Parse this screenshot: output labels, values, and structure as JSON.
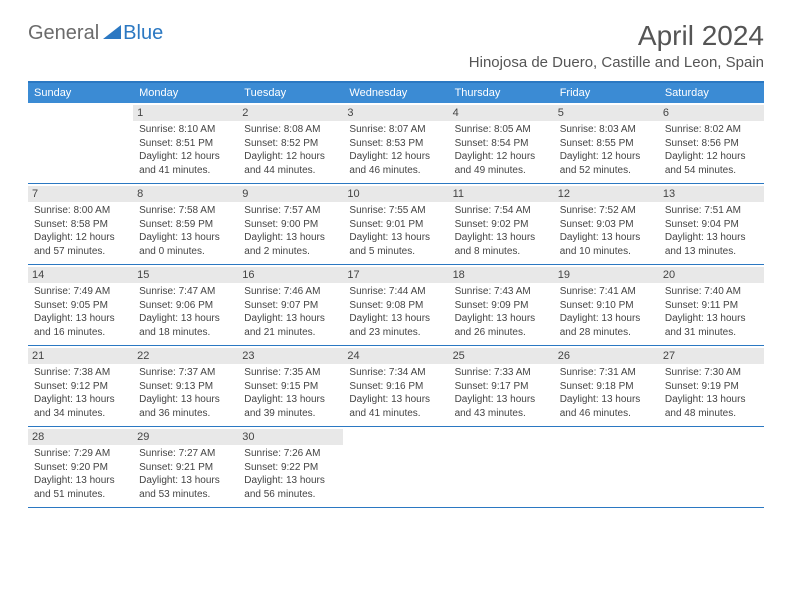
{
  "brand": {
    "part1": "General",
    "part2": "Blue"
  },
  "title": "April 2024",
  "location": "Hinojosa de Duero, Castille and Leon, Spain",
  "colors": {
    "header_bg": "#3b8bd4",
    "border": "#2b78c2",
    "daynum_bg": "#e8e8e8",
    "text": "#444444",
    "title_color": "#555555"
  },
  "day_names": [
    "Sunday",
    "Monday",
    "Tuesday",
    "Wednesday",
    "Thursday",
    "Friday",
    "Saturday"
  ],
  "weeks": [
    [
      null,
      {
        "n": "1",
        "sr": "8:10 AM",
        "ss": "8:51 PM",
        "dl": "12 hours and 41 minutes."
      },
      {
        "n": "2",
        "sr": "8:08 AM",
        "ss": "8:52 PM",
        "dl": "12 hours and 44 minutes."
      },
      {
        "n": "3",
        "sr": "8:07 AM",
        "ss": "8:53 PM",
        "dl": "12 hours and 46 minutes."
      },
      {
        "n": "4",
        "sr": "8:05 AM",
        "ss": "8:54 PM",
        "dl": "12 hours and 49 minutes."
      },
      {
        "n": "5",
        "sr": "8:03 AM",
        "ss": "8:55 PM",
        "dl": "12 hours and 52 minutes."
      },
      {
        "n": "6",
        "sr": "8:02 AM",
        "ss": "8:56 PM",
        "dl": "12 hours and 54 minutes."
      }
    ],
    [
      {
        "n": "7",
        "sr": "8:00 AM",
        "ss": "8:58 PM",
        "dl": "12 hours and 57 minutes."
      },
      {
        "n": "8",
        "sr": "7:58 AM",
        "ss": "8:59 PM",
        "dl": "13 hours and 0 minutes."
      },
      {
        "n": "9",
        "sr": "7:57 AM",
        "ss": "9:00 PM",
        "dl": "13 hours and 2 minutes."
      },
      {
        "n": "10",
        "sr": "7:55 AM",
        "ss": "9:01 PM",
        "dl": "13 hours and 5 minutes."
      },
      {
        "n": "11",
        "sr": "7:54 AM",
        "ss": "9:02 PM",
        "dl": "13 hours and 8 minutes."
      },
      {
        "n": "12",
        "sr": "7:52 AM",
        "ss": "9:03 PM",
        "dl": "13 hours and 10 minutes."
      },
      {
        "n": "13",
        "sr": "7:51 AM",
        "ss": "9:04 PM",
        "dl": "13 hours and 13 minutes."
      }
    ],
    [
      {
        "n": "14",
        "sr": "7:49 AM",
        "ss": "9:05 PM",
        "dl": "13 hours and 16 minutes."
      },
      {
        "n": "15",
        "sr": "7:47 AM",
        "ss": "9:06 PM",
        "dl": "13 hours and 18 minutes."
      },
      {
        "n": "16",
        "sr": "7:46 AM",
        "ss": "9:07 PM",
        "dl": "13 hours and 21 minutes."
      },
      {
        "n": "17",
        "sr": "7:44 AM",
        "ss": "9:08 PM",
        "dl": "13 hours and 23 minutes."
      },
      {
        "n": "18",
        "sr": "7:43 AM",
        "ss": "9:09 PM",
        "dl": "13 hours and 26 minutes."
      },
      {
        "n": "19",
        "sr": "7:41 AM",
        "ss": "9:10 PM",
        "dl": "13 hours and 28 minutes."
      },
      {
        "n": "20",
        "sr": "7:40 AM",
        "ss": "9:11 PM",
        "dl": "13 hours and 31 minutes."
      }
    ],
    [
      {
        "n": "21",
        "sr": "7:38 AM",
        "ss": "9:12 PM",
        "dl": "13 hours and 34 minutes."
      },
      {
        "n": "22",
        "sr": "7:37 AM",
        "ss": "9:13 PM",
        "dl": "13 hours and 36 minutes."
      },
      {
        "n": "23",
        "sr": "7:35 AM",
        "ss": "9:15 PM",
        "dl": "13 hours and 39 minutes."
      },
      {
        "n": "24",
        "sr": "7:34 AM",
        "ss": "9:16 PM",
        "dl": "13 hours and 41 minutes."
      },
      {
        "n": "25",
        "sr": "7:33 AM",
        "ss": "9:17 PM",
        "dl": "13 hours and 43 minutes."
      },
      {
        "n": "26",
        "sr": "7:31 AM",
        "ss": "9:18 PM",
        "dl": "13 hours and 46 minutes."
      },
      {
        "n": "27",
        "sr": "7:30 AM",
        "ss": "9:19 PM",
        "dl": "13 hours and 48 minutes."
      }
    ],
    [
      {
        "n": "28",
        "sr": "7:29 AM",
        "ss": "9:20 PM",
        "dl": "13 hours and 51 minutes."
      },
      {
        "n": "29",
        "sr": "7:27 AM",
        "ss": "9:21 PM",
        "dl": "13 hours and 53 minutes."
      },
      {
        "n": "30",
        "sr": "7:26 AM",
        "ss": "9:22 PM",
        "dl": "13 hours and 56 minutes."
      },
      null,
      null,
      null,
      null
    ]
  ],
  "labels": {
    "sunrise": "Sunrise:",
    "sunset": "Sunset:",
    "daylight": "Daylight:"
  }
}
